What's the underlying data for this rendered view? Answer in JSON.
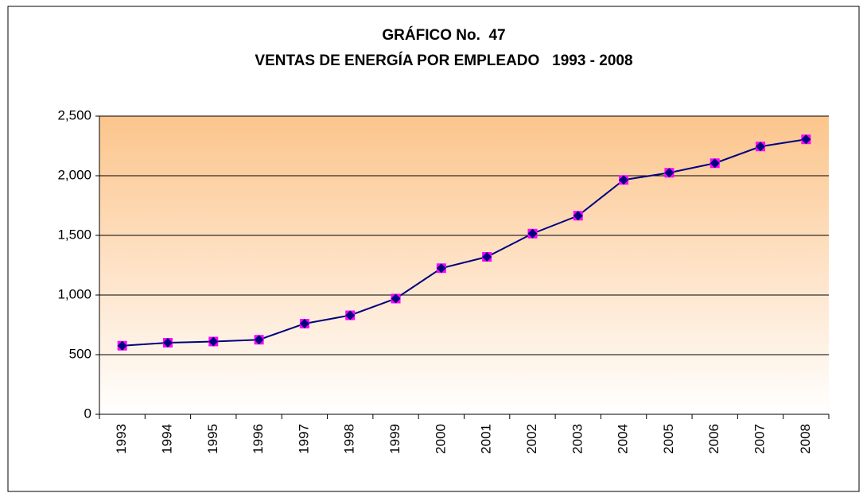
{
  "chart_data": {
    "type": "line",
    "title": "GRÁFICO No.  47",
    "subtitle": "VENTAS DE ENERGÍA POR EMPLEADO   1993 - 2008",
    "categories": [
      "1993",
      "1994",
      "1995",
      "1996",
      "1997",
      "1998",
      "1999",
      "2000",
      "2001",
      "2002",
      "2003",
      "2004",
      "2005",
      "2006",
      "2007",
      "2008"
    ],
    "values": [
      575,
      600,
      610,
      625,
      760,
      830,
      970,
      1225,
      1320,
      1515,
      1665,
      1965,
      2025,
      2105,
      2245,
      2305
    ],
    "color": "#000080",
    "marker_color": "#ff00ff",
    "ylim": [
      0,
      2500
    ],
    "yticks": [
      0,
      500,
      {
        "value": 1000,
        "label": "1,000"
      },
      {
        "value": 1500,
        "label": "1,500"
      },
      {
        "value": 2000,
        "label": "2,000"
      },
      {
        "value": 2500,
        "label": "2,500"
      }
    ],
    "grid": true
  }
}
